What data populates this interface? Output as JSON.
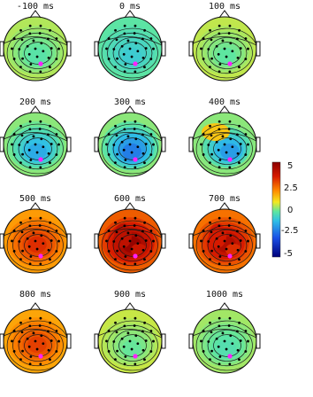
{
  "colorbar": {
    "ticks": [
      "5",
      "2.5",
      "0",
      "-2.5",
      "-5"
    ],
    "values": [
      5,
      2.5,
      0,
      -2.5,
      -5
    ],
    "min": -5,
    "max": 5,
    "colors": [
      "#8a0000",
      "#d61a00",
      "#ff8a00",
      "#f4e820",
      "#5ee6a0",
      "#2fbfe6",
      "#1a4fe6",
      "#00007a"
    ]
  },
  "maps": [
    {
      "label": "-100 ms",
      "level": 0.02,
      "pattern": "neutral"
    },
    {
      "label": "0 ms",
      "level": -0.1,
      "pattern": "neutral"
    },
    {
      "label": "100 ms",
      "level": 0.04,
      "pattern": "neutral"
    },
    {
      "label": "200 ms",
      "level": -0.3,
      "pattern": "center-negative"
    },
    {
      "label": "300 ms",
      "level": -0.45,
      "pattern": "center-negative"
    },
    {
      "label": "400 ms",
      "level": -0.35,
      "pattern": "mixed"
    },
    {
      "label": "500 ms",
      "level": 0.65,
      "pattern": "positive"
    },
    {
      "label": "600 ms",
      "level": 0.95,
      "pattern": "positive"
    },
    {
      "label": "700 ms",
      "level": 0.85,
      "pattern": "positive"
    },
    {
      "label": "800 ms",
      "level": 0.6,
      "pattern": "positive"
    },
    {
      "label": "900 ms",
      "level": 0.05,
      "pattern": "neutral"
    },
    {
      "label": "1000 ms",
      "level": 0.0,
      "pattern": "neutral"
    }
  ]
}
